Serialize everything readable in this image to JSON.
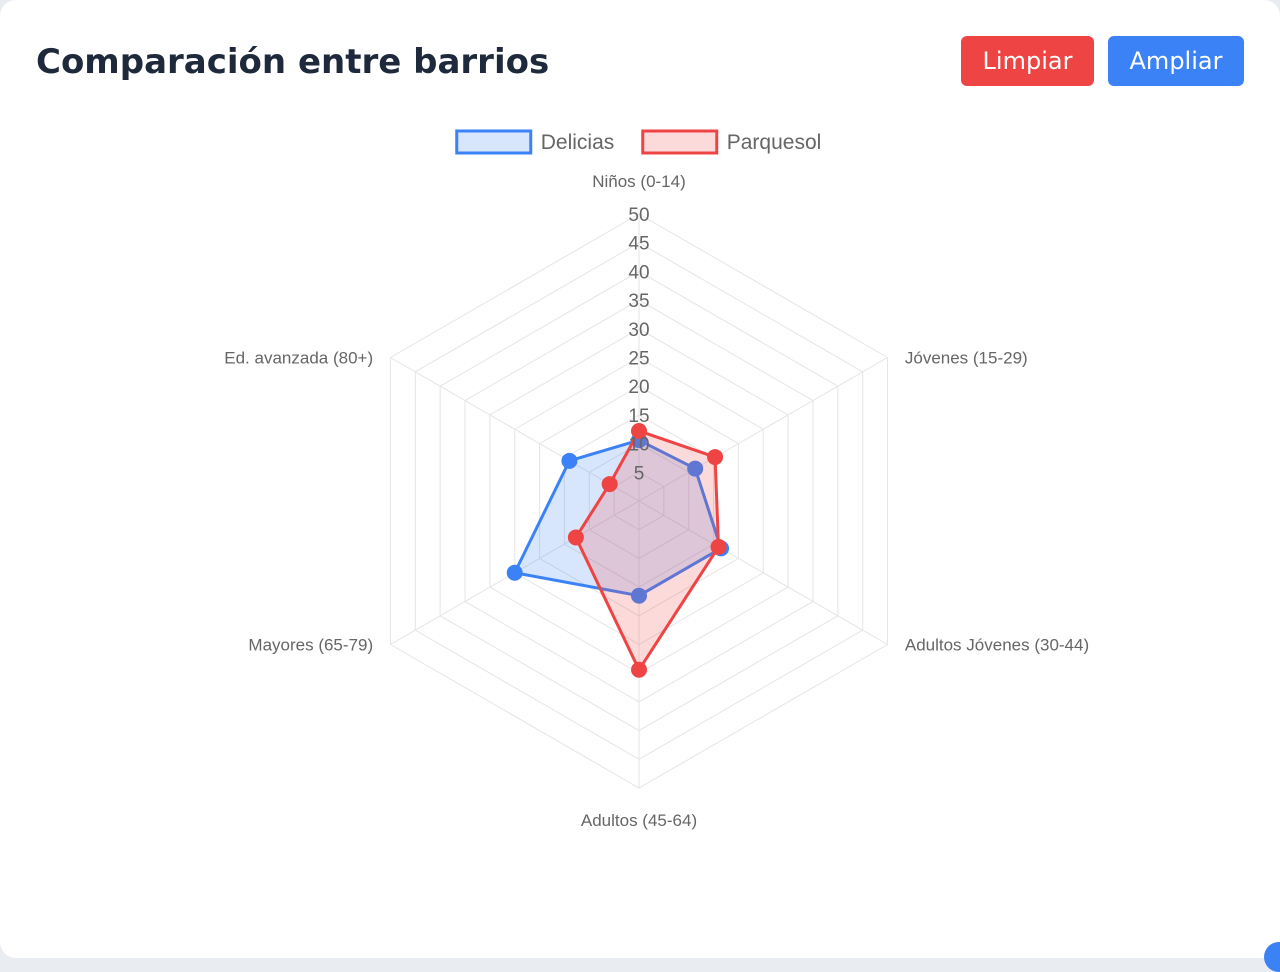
{
  "header": {
    "title": "Comparación entre barrios"
  },
  "buttons": {
    "clear_label": "Limpiar",
    "expand_label": "Ampliar"
  },
  "colors": {
    "clear_button": "#ef4444",
    "expand_button": "#3b82f6"
  },
  "chart_data": {
    "type": "radar",
    "categories": [
      "Niños (0-14)",
      "Jóvenes (15-29)",
      "Adultos Jóvenes (30-44)",
      "Adultos (45-64)",
      "Mayores (65-79)",
      "Ed. avanzada (80+)"
    ],
    "r_ticks": [
      5,
      10,
      15,
      20,
      25,
      30,
      35,
      40,
      45,
      50
    ],
    "rlim": [
      0,
      50
    ],
    "grid": true,
    "legend_position": "top",
    "series": [
      {
        "name": "Delicias",
        "values": [
          10.6,
          11.3,
          16.5,
          16.5,
          25.0,
          14.0
        ],
        "color": "#3b82f6",
        "fill": "rgba(59,130,246,0.2)"
      },
      {
        "name": "Parquesol",
        "values": [
          12.2,
          15.3,
          16.0,
          29.4,
          12.7,
          5.9
        ],
        "color": "#ef4444",
        "fill": "rgba(239,68,68,0.2)"
      }
    ]
  }
}
